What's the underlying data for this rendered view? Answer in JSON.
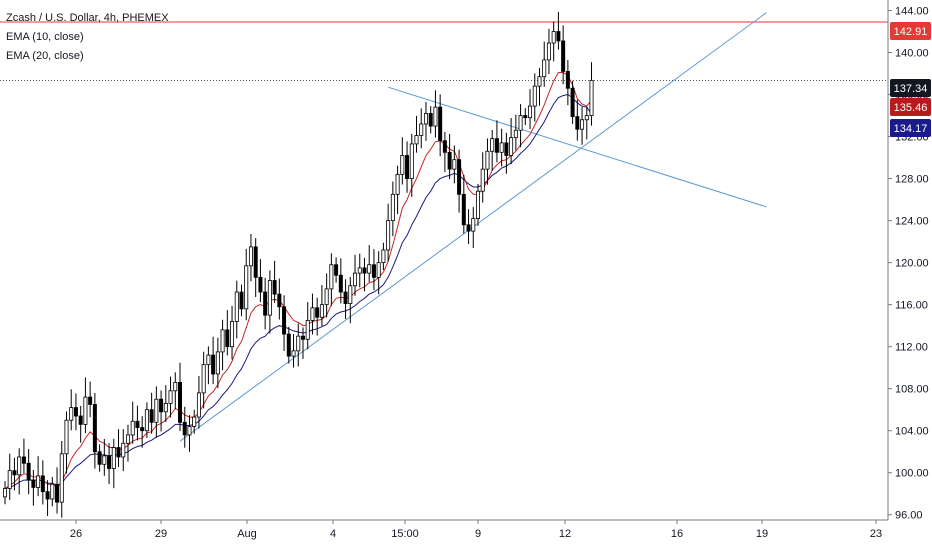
{
  "header": {
    "title": "Zcash / U.S. Dollar, 4h, PHEMEX",
    "ema10_label": "EMA (10, close)",
    "ema20_label": "EMA (20, close)"
  },
  "colors": {
    "up_candle": "#ffffff",
    "candle_outline": "#000000",
    "down_candle": "#000000",
    "ema10": "#c62828",
    "ema20": "#1a1a7a",
    "trendline": "#5b9bd5",
    "resistance_line": "#e53935",
    "last_price_badge": "#131722",
    "ema10_badge": "#b71c1c",
    "ema20_badge": "#1a1a8c",
    "resistance_badge": "#e53935"
  },
  "chart_data": {
    "type": "candlestick",
    "symbol": "Zcash / U.S. Dollar",
    "interval": "4h",
    "exchange": "PHEMEX",
    "x_tick_labels": [
      "26",
      "29",
      "Aug",
      "4",
      "15:00",
      "9",
      "12",
      "16",
      "19",
      "23"
    ],
    "y_tick_labels": [
      "144.00",
      "140.00",
      "136.00",
      "132.00",
      "128.00",
      "124.00",
      "120.00",
      "116.00",
      "112.00",
      "108.00",
      "104.00",
      "100.00",
      "96.00"
    ],
    "ylim": [
      95.5,
      145
    ],
    "price_badges": [
      {
        "label": "142.91",
        "value": 142.91,
        "kind": "resistance"
      },
      {
        "label": "137.34",
        "value": 137.34,
        "kind": "last_price"
      },
      {
        "label": "135.46",
        "value": 135.46,
        "kind": "ema10"
      },
      {
        "label": "134.17",
        "value": 134.17,
        "kind": "ema20"
      }
    ],
    "closes": [
      98.5,
      100.2,
      99.8,
      101.5,
      100.9,
      99.3,
      98.6,
      99.7,
      98.2,
      97.5,
      98.9,
      97.2,
      101.8,
      105.0,
      106.2,
      105.4,
      104.6,
      107.2,
      106.5,
      102.0,
      100.8,
      101.6,
      100.4,
      102.4,
      101.5,
      102.8,
      103.6,
      104.9,
      104.3,
      104.0,
      106.0,
      104.8,
      107.0,
      105.8,
      106.6,
      107.8,
      108.6,
      104.8,
      103.6,
      104.4,
      105.3,
      107.6,
      110.3,
      111.2,
      109.4,
      111.5,
      113.6,
      112.0,
      114.4,
      117.2,
      115.6,
      119.7,
      121.5,
      118.6,
      117.2,
      115.0,
      118.3,
      117.0,
      115.8,
      113.2,
      111.1,
      111.6,
      113.0,
      112.7,
      114.5,
      115.7,
      114.8,
      116.0,
      117.5,
      119.8,
      118.8,
      117.2,
      116.1,
      117.8,
      119.0,
      119.5,
      119.0,
      119.8,
      118.6,
      120.0,
      121.2,
      124.0,
      126.5,
      128.4,
      130.2,
      128.0,
      131.3,
      132.1,
      133.2,
      134.2,
      133.0,
      134.8,
      131.6,
      130.5,
      128.9,
      129.8,
      126.5,
      123.6,
      123.0,
      124.2,
      126.8,
      128.9,
      130.6,
      131.8,
      130.5,
      131.4,
      130.2,
      131.9,
      132.6,
      134.0,
      133.8,
      134.9,
      136.8,
      137.7,
      139.3,
      140.9,
      142.0,
      141.1,
      138.2,
      136.6,
      133.9,
      132.7,
      133.6,
      134.0,
      137.34
    ],
    "ema10": [
      98.5,
      98.8,
      99.1,
      99.6,
      99.9,
      99.8,
      99.6,
      99.6,
      99.3,
      98.9,
      98.9,
      98.6,
      99.1,
      100.2,
      101.3,
      102.0,
      102.5,
      103.3,
      103.9,
      103.5,
      103.0,
      102.8,
      102.4,
      102.4,
      102.2,
      102.3,
      102.6,
      103.0,
      103.2,
      103.3,
      103.8,
      103.9,
      104.5,
      104.7,
      105.0,
      105.5,
      106.1,
      105.9,
      105.5,
      105.3,
      105.3,
      105.7,
      106.5,
      107.3,
      107.7,
      108.4,
      109.3,
      109.8,
      110.6,
      111.8,
      112.5,
      113.8,
      115.2,
      115.8,
      116.0,
      115.8,
      116.4,
      116.5,
      116.4,
      115.8,
      115.1,
      114.5,
      114.3,
      114.0,
      114.1,
      114.4,
      114.5,
      114.6,
      115.0,
      116.0,
      116.6,
      116.7,
      116.6,
      116.7,
      117.2,
      117.5,
      117.7,
      118.1,
      118.2,
      118.6,
      119.1,
      120.1,
      121.7,
      123.4,
      125.2,
      126.0,
      127.1,
      128.0,
      129.1,
      130.2,
      130.8,
      131.5,
      131.6,
      131.3,
      130.8,
      130.6,
      129.5,
      128.2,
      127.0,
      126.5,
      126.5,
      127.0,
      127.8,
      128.8,
      129.3,
      129.7,
      129.8,
      130.2,
      130.6,
      131.2,
      131.7,
      132.2,
      133.1,
      134.0,
      135.0,
      136.2,
      137.3,
      138.1,
      138.1,
      137.8,
      136.9,
      135.6,
      135.1,
      134.9,
      135.46
    ],
    "ema20": [
      98.5,
      98.6,
      98.8,
      99.1,
      99.3,
      99.3,
      99.3,
      99.3,
      99.2,
      99.0,
      99.0,
      98.8,
      99.0,
      99.6,
      100.1,
      100.6,
      100.9,
      101.3,
      101.7,
      101.8,
      101.7,
      101.7,
      101.6,
      101.7,
      101.7,
      101.8,
      102.0,
      102.3,
      102.5,
      102.6,
      102.9,
      103.1,
      103.4,
      103.6,
      103.9,
      104.2,
      104.6,
      104.6,
      104.5,
      104.5,
      104.6,
      104.9,
      105.4,
      106.0,
      106.3,
      106.8,
      107.4,
      107.9,
      108.5,
      109.3,
      109.9,
      110.8,
      111.8,
      112.4,
      112.8,
      113.0,
      113.5,
      113.8,
      114.0,
      113.9,
      113.7,
      113.5,
      113.4,
      113.3,
      113.4,
      113.6,
      113.7,
      113.9,
      114.1,
      114.7,
      115.1,
      115.3,
      115.4,
      115.6,
      115.9,
      116.3,
      116.6,
      117.0,
      117.2,
      117.5,
      117.9,
      118.6,
      119.6,
      120.7,
      121.9,
      122.6,
      123.6,
      124.4,
      125.3,
      126.2,
      126.8,
      127.6,
      128.0,
      128.2,
      128.3,
      128.5,
      128.3,
      127.9,
      127.5,
      127.2,
      127.2,
      127.4,
      127.8,
      128.3,
      128.6,
      129.0,
      129.2,
      129.5,
      129.9,
      130.4,
      130.8,
      131.3,
      132.0,
      132.7,
      133.4,
      134.3,
      135.1,
      135.7,
      135.9,
      136.0,
      135.7,
      135.2,
      134.9,
      134.8,
      134.17
    ],
    "trendlines": [
      {
        "from": [
          37,
          103.0
        ],
        "to": [
          161,
          143.8
        ]
      },
      {
        "from": [
          81,
          136.7
        ],
        "to": [
          161,
          125.3
        ]
      }
    ],
    "horizontal_lines": [
      {
        "value": 142.91,
        "style": "solid",
        "color": "resistance"
      },
      {
        "value": 137.34,
        "style": "dotted",
        "color": "last_price"
      }
    ]
  }
}
